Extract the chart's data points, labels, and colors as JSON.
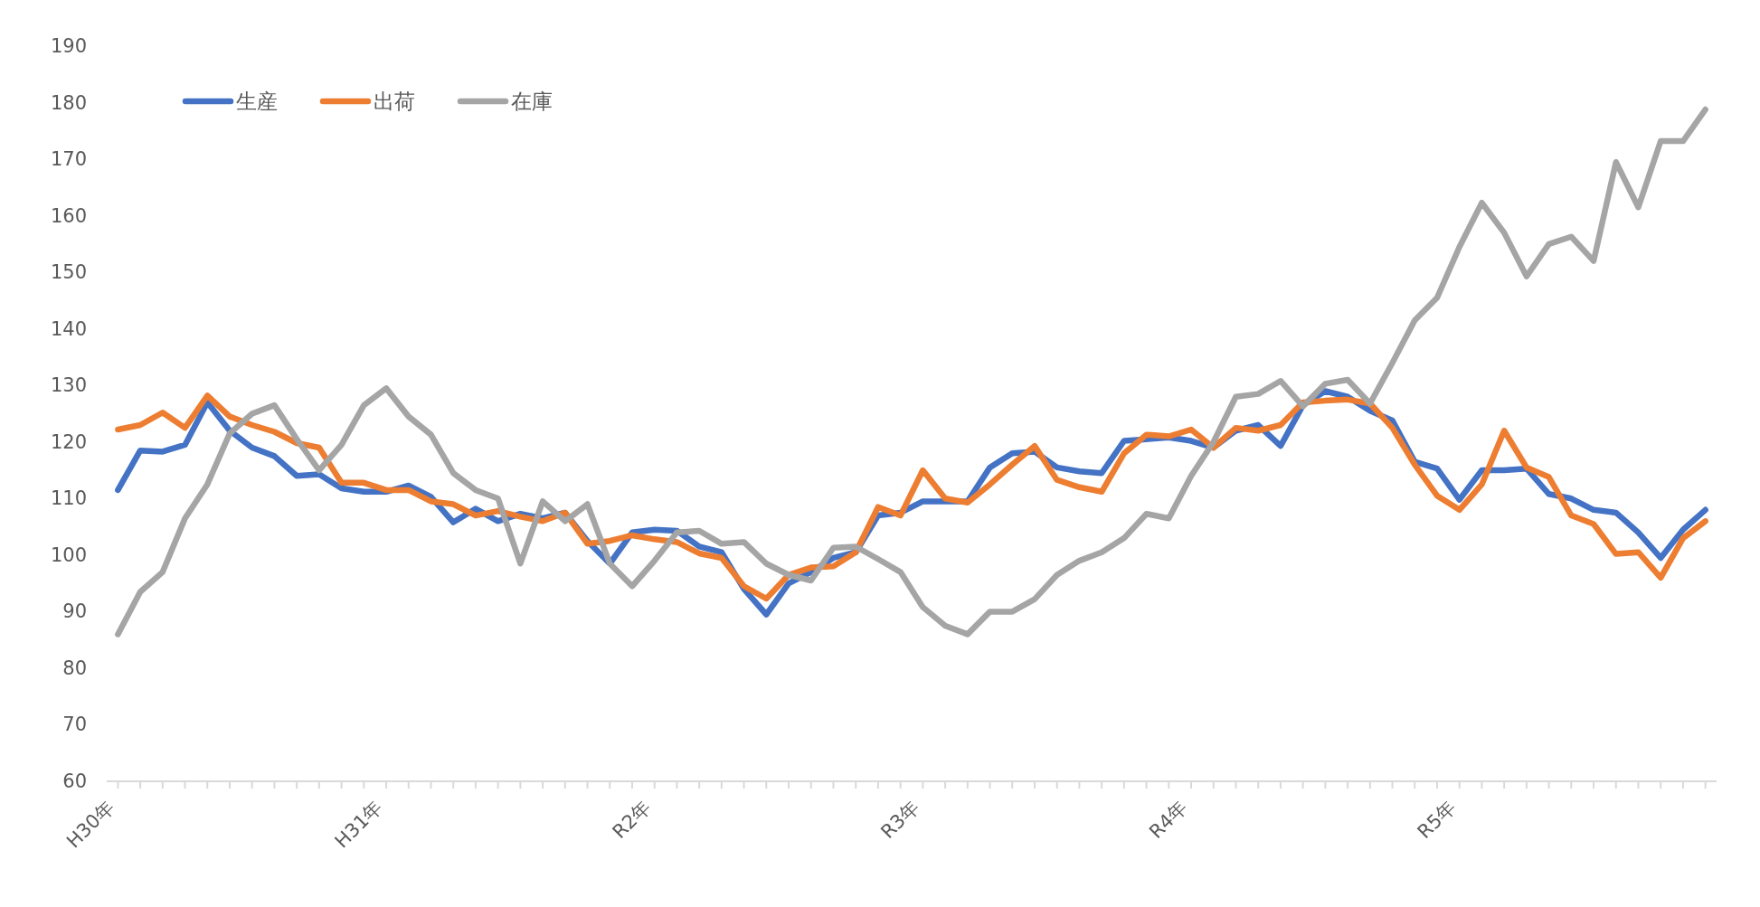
{
  "chart_data": {
    "type": "line",
    "categories": [
      "H30年",
      null,
      null,
      null,
      null,
      null,
      null,
      null,
      null,
      null,
      null,
      null,
      "H31年",
      null,
      null,
      null,
      null,
      null,
      null,
      null,
      null,
      null,
      null,
      null,
      "R2年",
      null,
      null,
      null,
      null,
      null,
      null,
      null,
      null,
      null,
      null,
      null,
      "R3年",
      null,
      null,
      null,
      null,
      null,
      null,
      null,
      null,
      null,
      null,
      null,
      "R4年",
      null,
      null,
      null,
      null,
      null,
      null,
      null,
      null,
      null,
      null,
      null,
      "R5年",
      null,
      null,
      null,
      null,
      null,
      null,
      null,
      null,
      null,
      null,
      null
    ],
    "series": [
      {
        "name": "生産",
        "color": "#4472c4",
        "values": [
          111.5,
          118.5,
          118.3,
          119.5,
          127,
          122,
          119,
          117.5,
          114,
          114.3,
          111.8,
          111.2,
          111.2,
          112.3,
          110.3,
          105.8,
          108.2,
          106,
          107.3,
          106.5,
          107.5,
          102.5,
          98.5,
          104,
          104.5,
          104.3,
          101.5,
          100.5,
          94,
          89.5,
          95,
          97,
          99.5,
          100.5,
          107,
          107.5,
          109.5,
          109.5,
          109.5,
          115.5,
          118,
          118.3,
          115.5,
          114.8,
          114.5,
          120.2,
          120.5,
          120.8,
          120.2,
          119,
          122,
          123,
          119.3,
          126.5,
          129,
          128,
          125.5,
          123.8,
          116.5,
          115.3,
          109.8,
          115,
          115,
          115.3,
          110.8,
          110,
          108,
          107.5,
          104,
          99.5,
          104.5,
          108
        ]
      },
      {
        "name": "出荷",
        "color": "#ed7d31",
        "values": [
          122.2,
          123,
          125.2,
          122.5,
          128.2,
          124.5,
          123,
          121.8,
          119.8,
          119,
          112.8,
          112.8,
          111.5,
          111.5,
          109.5,
          109,
          107,
          107.8,
          106.8,
          106,
          107.5,
          102,
          102.5,
          103.5,
          102.8,
          102.3,
          100.3,
          99.5,
          94.5,
          92.3,
          96.5,
          97.8,
          98,
          100.5,
          108.5,
          107,
          115,
          110,
          109.3,
          112.5,
          116,
          119.3,
          113.3,
          112,
          111.2,
          118,
          121.3,
          121,
          122.2,
          119,
          122.5,
          122,
          123,
          127,
          127.3,
          127.5,
          126.8,
          122.5,
          116,
          110.5,
          108,
          112.5,
          122,
          115.5,
          113.8,
          107,
          105.5,
          100.2,
          100.5,
          96,
          103,
          106
        ]
      },
      {
        "name": "在庫",
        "color": "#a5a5a5",
        "values": [
          86,
          93.5,
          97,
          106.5,
          112.5,
          121.5,
          125,
          126.5,
          120.5,
          115,
          119.5,
          126.5,
          129.5,
          124.5,
          121.3,
          114.5,
          111.5,
          110,
          98.5,
          109.5,
          106,
          109,
          98.5,
          94.5,
          99,
          104,
          104.3,
          102,
          102.3,
          98.5,
          96.5,
          95.5,
          101.3,
          101.5,
          99.3,
          97,
          90.8,
          87.5,
          86,
          90,
          90,
          92.2,
          96.5,
          99,
          100.5,
          103,
          107.3,
          106.5,
          114,
          120,
          128,
          128.5,
          130.8,
          126.3,
          130.3,
          131,
          126.8,
          134,
          141.5,
          145.5,
          154.5,
          162.3,
          157,
          149.3,
          155,
          156.3,
          152,
          169.5,
          161.5,
          173.2,
          173.2,
          178.8
        ]
      }
    ],
    "ylim": [
      60,
      190
    ],
    "yticks": [
      60,
      70,
      80,
      90,
      100,
      110,
      120,
      130,
      140,
      150,
      160,
      170,
      180,
      190
    ],
    "legend": "top left"
  }
}
